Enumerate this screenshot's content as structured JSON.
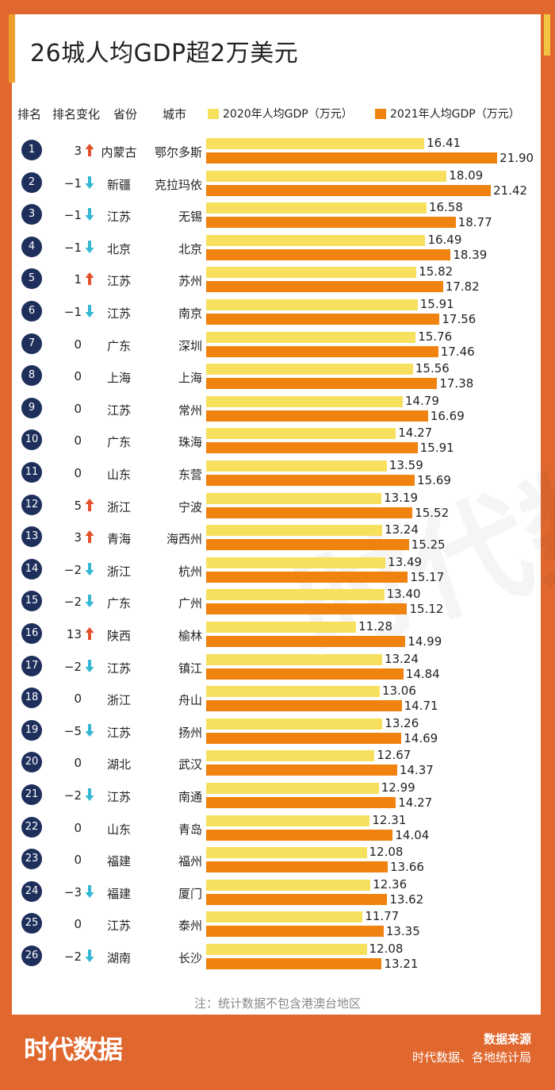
{
  "title": "26城人均GDP超2万美元",
  "headers": {
    "rank": "排名",
    "change": "排名变化",
    "province": "省份",
    "city": "城市"
  },
  "legend": {
    "y2020": "2020年人均GDP（万元）",
    "y2021": "2021年人均GDP（万元）"
  },
  "colors": {
    "bar2020": "#f8e05f",
    "bar2021": "#f0820f",
    "rank_circle": "#1f2f5c",
    "frame": "#e0682f",
    "arrow_up": "#e2512c",
    "arrow_down": "#35b7d3"
  },
  "note": "注：统计数据不包含港澳台地区",
  "footer": {
    "logo": "时代数据",
    "source_title": "数据来源",
    "source_text": "时代数据、各地统计局"
  },
  "watermark": "时代数据",
  "chart_data": {
    "type": "bar",
    "orientation": "horizontal",
    "title": "26城人均GDP超2万美元",
    "xlim": [
      0,
      22
    ],
    "series": [
      {
        "name": "2020年人均GDP（万元）",
        "key": "gdp2020"
      },
      {
        "name": "2021年人均GDP（万元）",
        "key": "gdp2021"
      }
    ],
    "rows": [
      {
        "rank": "1",
        "change": "3",
        "dir": "up",
        "province": "内蒙古",
        "city": "鄂尔多斯",
        "gdp2020": "16.41",
        "gdp2021": "21.90"
      },
      {
        "rank": "2",
        "change": "−1",
        "dir": "down",
        "province": "新疆",
        "city": "克拉玛依",
        "gdp2020": "18.09",
        "gdp2021": "21.42"
      },
      {
        "rank": "3",
        "change": "−1",
        "dir": "down",
        "province": "江苏",
        "city": "无锡",
        "gdp2020": "16.58",
        "gdp2021": "18.77"
      },
      {
        "rank": "4",
        "change": "−1",
        "dir": "down",
        "province": "北京",
        "city": "北京",
        "gdp2020": "16.49",
        "gdp2021": "18.39"
      },
      {
        "rank": "5",
        "change": "1",
        "dir": "up",
        "province": "江苏",
        "city": "苏州",
        "gdp2020": "15.82",
        "gdp2021": "17.82"
      },
      {
        "rank": "6",
        "change": "−1",
        "dir": "down",
        "province": "江苏",
        "city": "南京",
        "gdp2020": "15.91",
        "gdp2021": "17.56"
      },
      {
        "rank": "7",
        "change": "0",
        "dir": "none",
        "province": "广东",
        "city": "深圳",
        "gdp2020": "15.76",
        "gdp2021": "17.46"
      },
      {
        "rank": "8",
        "change": "0",
        "dir": "none",
        "province": "上海",
        "city": "上海",
        "gdp2020": "15.56",
        "gdp2021": "17.38"
      },
      {
        "rank": "9",
        "change": "0",
        "dir": "none",
        "province": "江苏",
        "city": "常州",
        "gdp2020": "14.79",
        "gdp2021": "16.69"
      },
      {
        "rank": "10",
        "change": "0",
        "dir": "none",
        "province": "广东",
        "city": "珠海",
        "gdp2020": "14.27",
        "gdp2021": "15.91"
      },
      {
        "rank": "11",
        "change": "0",
        "dir": "none",
        "province": "山东",
        "city": "东营",
        "gdp2020": "13.59",
        "gdp2021": "15.69"
      },
      {
        "rank": "12",
        "change": "5",
        "dir": "up",
        "province": "浙江",
        "city": "宁波",
        "gdp2020": "13.19",
        "gdp2021": "15.52"
      },
      {
        "rank": "13",
        "change": "3",
        "dir": "up",
        "province": "青海",
        "city": "海西州",
        "gdp2020": "13.24",
        "gdp2021": "15.25"
      },
      {
        "rank": "14",
        "change": "−2",
        "dir": "down",
        "province": "浙江",
        "city": "杭州",
        "gdp2020": "13.49",
        "gdp2021": "15.17"
      },
      {
        "rank": "15",
        "change": "−2",
        "dir": "down",
        "province": "广东",
        "city": "广州",
        "gdp2020": "13.40",
        "gdp2021": "15.12"
      },
      {
        "rank": "16",
        "change": "13",
        "dir": "up",
        "province": "陕西",
        "city": "榆林",
        "gdp2020": "11.28",
        "gdp2021": "14.99"
      },
      {
        "rank": "17",
        "change": "−2",
        "dir": "down",
        "province": "江苏",
        "city": "镇江",
        "gdp2020": "13.24",
        "gdp2021": "14.84"
      },
      {
        "rank": "18",
        "change": "0",
        "dir": "none",
        "province": "浙江",
        "city": "舟山",
        "gdp2020": "13.06",
        "gdp2021": "14.71"
      },
      {
        "rank": "19",
        "change": "−5",
        "dir": "down",
        "province": "江苏",
        "city": "扬州",
        "gdp2020": "13.26",
        "gdp2021": "14.69"
      },
      {
        "rank": "20",
        "change": "0",
        "dir": "none",
        "province": "湖北",
        "city": "武汉",
        "gdp2020": "12.67",
        "gdp2021": "14.37"
      },
      {
        "rank": "21",
        "change": "−2",
        "dir": "down",
        "province": "江苏",
        "city": "南通",
        "gdp2020": "12.99",
        "gdp2021": "14.27"
      },
      {
        "rank": "22",
        "change": "0",
        "dir": "none",
        "province": "山东",
        "city": "青岛",
        "gdp2020": "12.31",
        "gdp2021": "14.04"
      },
      {
        "rank": "23",
        "change": "0",
        "dir": "none",
        "province": "福建",
        "city": "福州",
        "gdp2020": "12.08",
        "gdp2021": "13.66"
      },
      {
        "rank": "24",
        "change": "−3",
        "dir": "down",
        "province": "福建",
        "city": "厦门",
        "gdp2020": "12.36",
        "gdp2021": "13.62"
      },
      {
        "rank": "25",
        "change": "0",
        "dir": "none",
        "province": "江苏",
        "city": "泰州",
        "gdp2020": "11.77",
        "gdp2021": "13.35"
      },
      {
        "rank": "26",
        "change": "−2",
        "dir": "down",
        "province": "湖南",
        "city": "长沙",
        "gdp2020": "12.08",
        "gdp2021": "13.21"
      }
    ]
  }
}
